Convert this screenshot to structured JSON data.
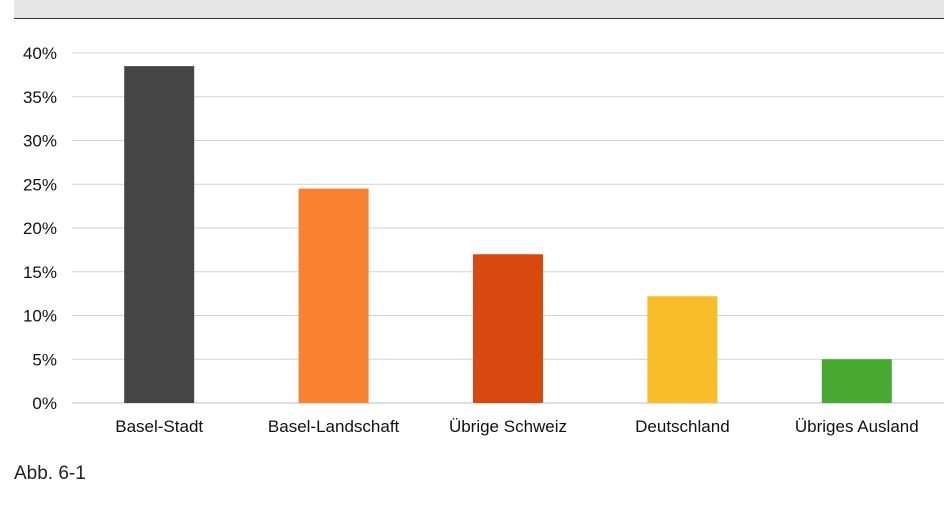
{
  "caption": "Abb. 6-1",
  "colors": {
    "gridline": "#c9d3dd",
    "axis_text": "#111111"
  },
  "chart_data": {
    "type": "bar",
    "categories": [
      "Basel-Stadt",
      "Basel-Landschaft",
      "Übrige Schweiz",
      "Deutschland",
      "Übriges Ausland"
    ],
    "values": [
      38.5,
      24.5,
      17.0,
      12.2,
      5.0
    ],
    "bar_colors": [
      "#454545",
      "#f98231",
      "#d9480f",
      "#f8bd28",
      "#47a932"
    ],
    "ylim": [
      0,
      40
    ],
    "yticks": [
      0,
      5,
      10,
      15,
      20,
      25,
      30,
      35,
      40
    ],
    "ytick_labels": [
      "0%",
      "5%",
      "10%",
      "15%",
      "20%",
      "25%",
      "30%",
      "35%",
      "40%"
    ],
    "grid": true,
    "legend": "none"
  }
}
